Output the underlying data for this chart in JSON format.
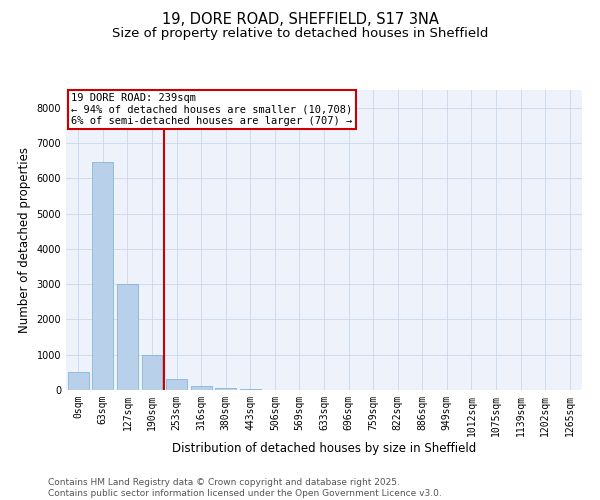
{
  "title1": "19, DORE ROAD, SHEFFIELD, S17 3NA",
  "title2": "Size of property relative to detached houses in Sheffield",
  "xlabel": "Distribution of detached houses by size in Sheffield",
  "ylabel": "Number of detached properties",
  "bar_color": "#b8d0ea",
  "bar_edge_color": "#7aadd4",
  "grid_color": "#c8d8ec",
  "background_color": "#eef2fb",
  "vline_color": "#cc0000",
  "annotation_text": "19 DORE ROAD: 239sqm\n← 94% of detached houses are smaller (10,708)\n6% of semi-detached houses are larger (707) →",
  "annotation_box_color": "#cc0000",
  "bins": [
    "0sqm",
    "63sqm",
    "127sqm",
    "190sqm",
    "253sqm",
    "316sqm",
    "380sqm",
    "443sqm",
    "506sqm",
    "569sqm",
    "633sqm",
    "696sqm",
    "759sqm",
    "822sqm",
    "886sqm",
    "949sqm",
    "1012sqm",
    "1075sqm",
    "1139sqm",
    "1202sqm",
    "1265sqm"
  ],
  "values": [
    500,
    6450,
    3000,
    1000,
    300,
    120,
    50,
    30,
    10,
    0,
    0,
    0,
    0,
    0,
    0,
    0,
    0,
    0,
    0,
    0,
    0
  ],
  "ylim_max": 8500,
  "yticks": [
    0,
    1000,
    2000,
    3000,
    4000,
    5000,
    6000,
    7000,
    8000
  ],
  "footer_text": "Contains HM Land Registry data © Crown copyright and database right 2025.\nContains public sector information licensed under the Open Government Licence v3.0.",
  "title1_fontsize": 10.5,
  "title2_fontsize": 9.5,
  "axis_label_fontsize": 8.5,
  "tick_fontsize": 7,
  "footer_fontsize": 6.5,
  "ann_fontsize": 7.5
}
